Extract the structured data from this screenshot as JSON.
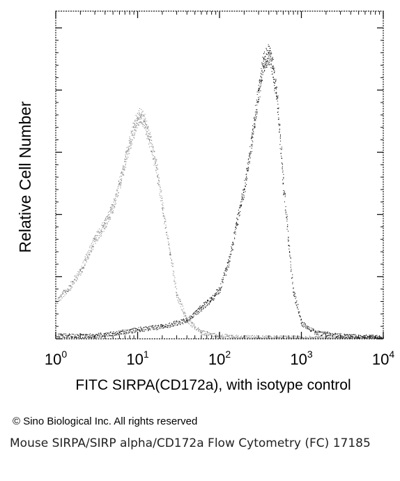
{
  "chart_data": {
    "type": "area",
    "title": "",
    "xlabel": "FITC SIRPA(CD172a), with isotype control",
    "ylabel": "Relative Cell Number",
    "xscale": "log",
    "xlim": [
      1,
      10000
    ],
    "ylim": [
      0,
      1.0
    ],
    "grid": false,
    "legend": "none",
    "x_ticks": [
      {
        "base": "10",
        "exp": "0"
      },
      {
        "base": "10",
        "exp": "1"
      },
      {
        "base": "10",
        "exp": "2"
      },
      {
        "base": "10",
        "exp": "3"
      },
      {
        "base": "10",
        "exp": "4"
      }
    ],
    "series": [
      {
        "style": "dotted-gray",
        "color": "#7a7a7a",
        "x": [
          1,
          1.5,
          2,
          3,
          4,
          5,
          6,
          7,
          8,
          9,
          10,
          11,
          12,
          14,
          17,
          20,
          25,
          30,
          40,
          60,
          100,
          200,
          1000,
          10000
        ],
        "y": [
          0.12,
          0.17,
          0.22,
          0.32,
          0.37,
          0.43,
          0.5,
          0.57,
          0.63,
          0.68,
          0.71,
          0.72,
          0.7,
          0.64,
          0.55,
          0.42,
          0.27,
          0.14,
          0.06,
          0.02,
          0.01,
          0.005,
          0.003,
          0.002
        ]
      },
      {
        "style": "dotted-black",
        "color": "#111111",
        "x": [
          1,
          3,
          6,
          10,
          20,
          40,
          60,
          80,
          100,
          130,
          160,
          200,
          250,
          300,
          350,
          400,
          450,
          500,
          600,
          700,
          800,
          1000,
          1500,
          3000,
          10000
        ],
        "y": [
          0.01,
          0.01,
          0.02,
          0.03,
          0.04,
          0.06,
          0.1,
          0.13,
          0.16,
          0.25,
          0.37,
          0.48,
          0.65,
          0.8,
          0.9,
          0.92,
          0.87,
          0.78,
          0.5,
          0.3,
          0.15,
          0.05,
          0.02,
          0.01,
          0.005
        ]
      }
    ]
  },
  "footer": {
    "copyright": "© Sino Biological Inc. All rights reserved",
    "caption": "Mouse SIRPA/SIRP alpha/CD172a Flow Cytometry (FC) 17185"
  }
}
